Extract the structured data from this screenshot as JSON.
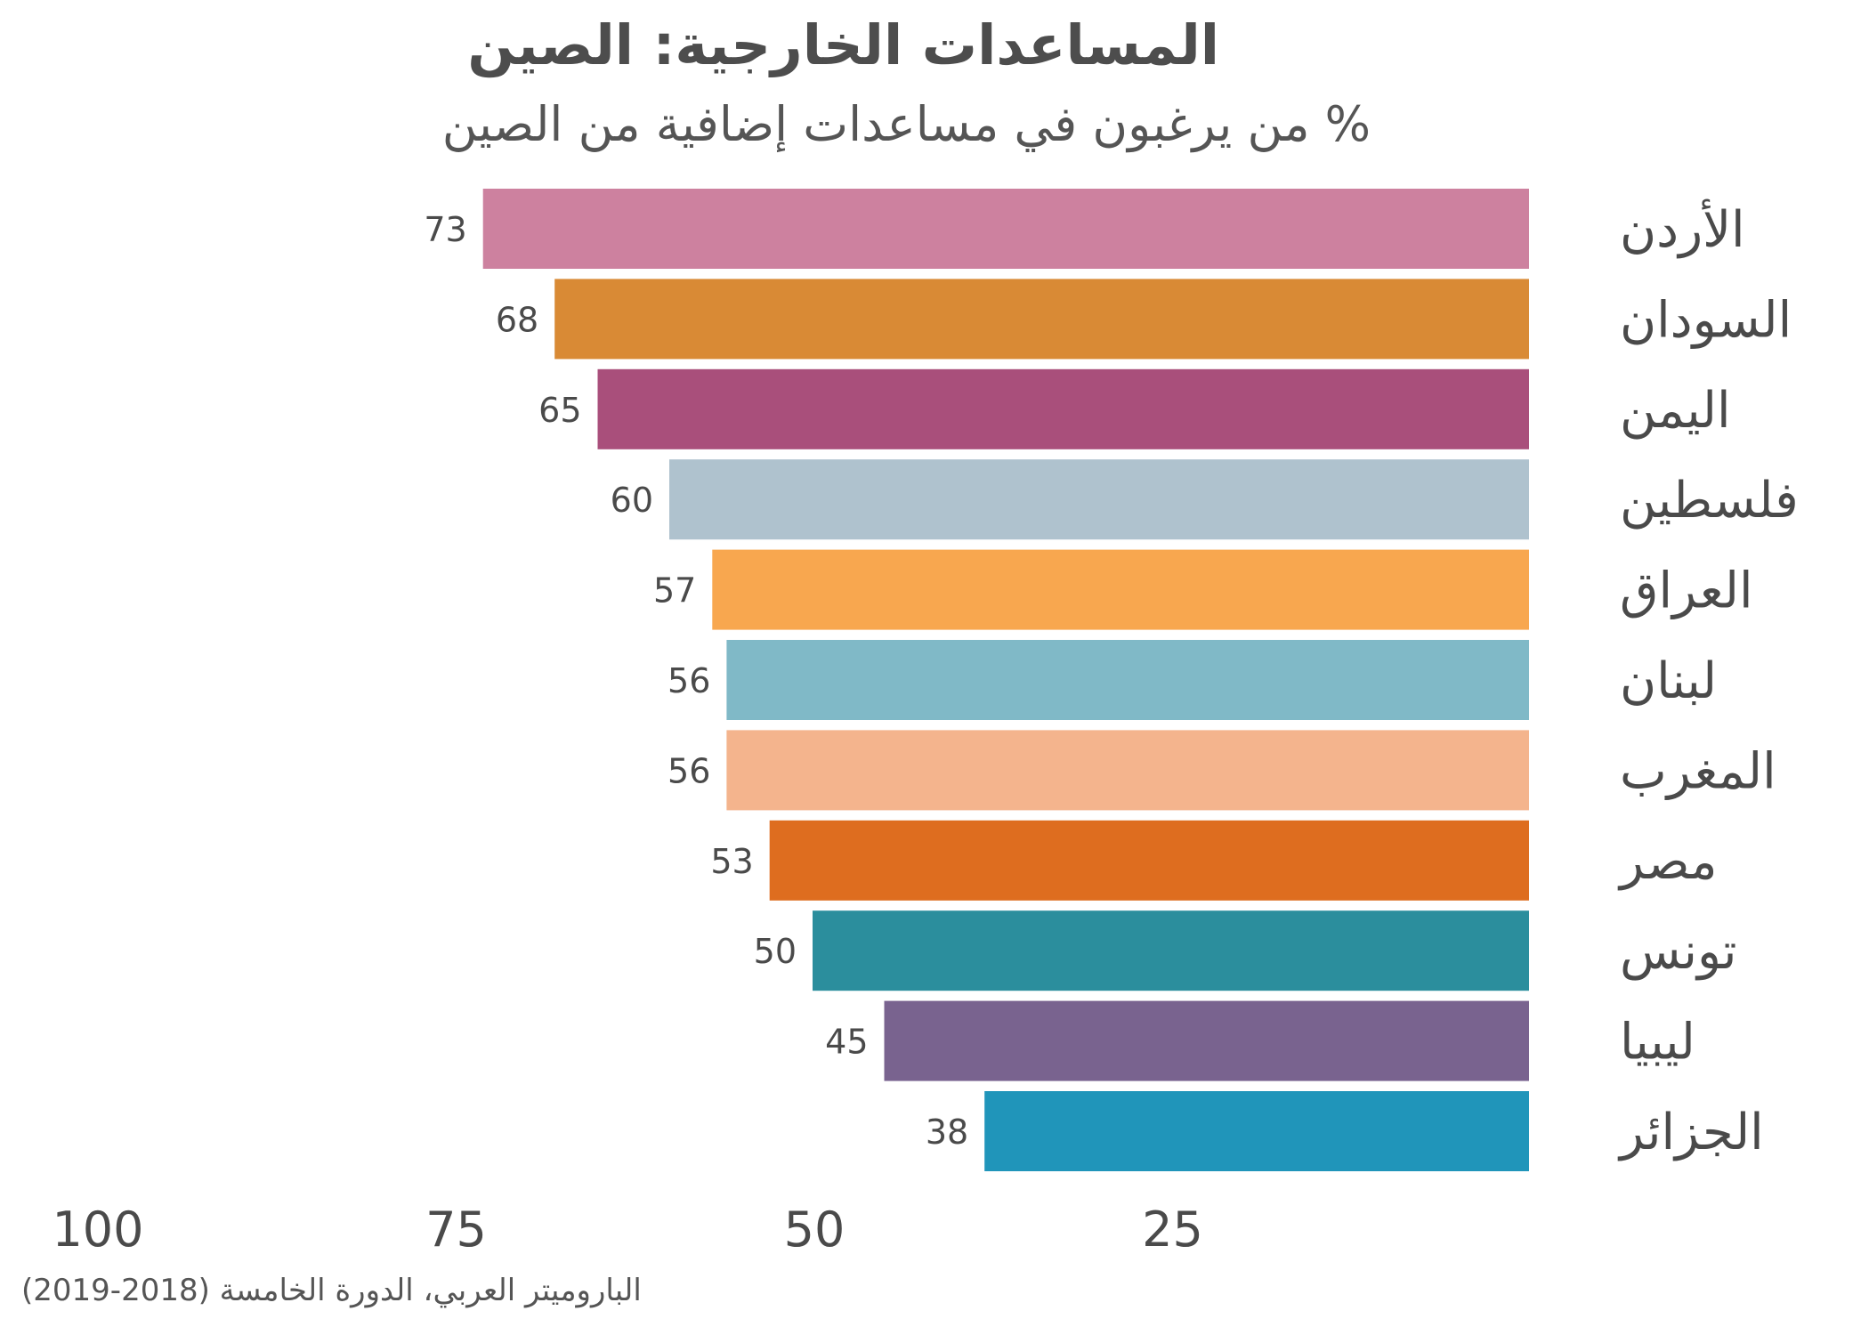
{
  "chart_data": {
    "type": "bar",
    "orientation": "horizontal",
    "title": "المساعدات الخارجية: الصين",
    "subtitle": "% من يرغبون في مساعدات إضافية من الصين",
    "categories": [
      "الأردن",
      "السودان",
      "اليمن",
      "فلسطين",
      "العراق",
      "لبنان",
      "المغرب",
      "مصر",
      "تونس",
      "ليبيا",
      "الجزائر"
    ],
    "values": [
      73,
      68,
      65,
      60,
      57,
      56,
      56,
      53,
      50,
      45,
      38
    ],
    "colors": [
      "#cd819f",
      "#d98a35",
      "#a94f7b",
      "#afc2ce",
      "#f8a74f",
      "#80b9c7",
      "#f4b48d",
      "#de6d1f",
      "#2b8e9d",
      "#79638f",
      "#2095ba"
    ],
    "xlim": [
      0,
      100
    ],
    "x_axis_direction": "right-to-left",
    "xticks": [
      "100",
      "75",
      "50",
      "25"
    ],
    "xtick_values": [
      100,
      75,
      50,
      25
    ],
    "source": "الباروميتر العربي، الدورة الخامسة (2018-2019)"
  }
}
